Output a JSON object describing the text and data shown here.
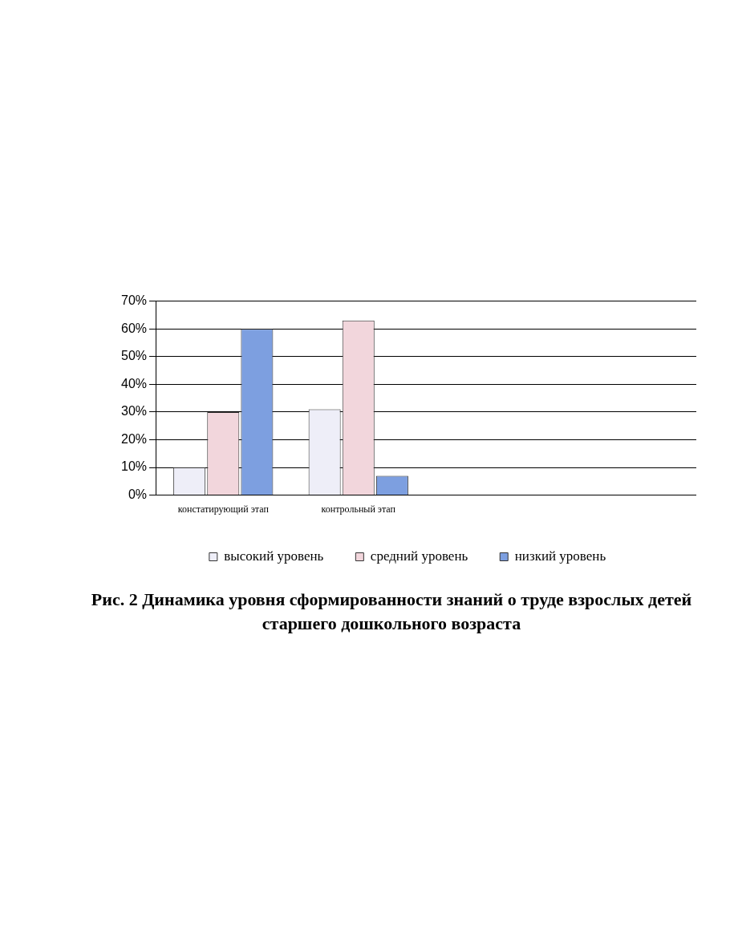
{
  "chart_data": {
    "type": "bar",
    "title": "Рис. 2 Динамика уровня сформированности знаний о труде взрослых детей старшего дошкольного возраста",
    "categories": [
      "констатирующий этап",
      "контрольный этап",
      null,
      null
    ],
    "series": [
      {
        "name": "высокий уровень",
        "color": "#eeeef8",
        "values": [
          10,
          31,
          0,
          0
        ]
      },
      {
        "name": "средний уровень",
        "color": "#f2d6dc",
        "values": [
          30,
          63,
          0,
          0
        ]
      },
      {
        "name": "низкий уровень",
        "color": "#7d9fe0",
        "values": [
          60,
          7,
          0,
          0
        ]
      }
    ],
    "ylim": [
      0,
      70
    ],
    "yticks": [
      {
        "value": 0,
        "label": "0%"
      },
      {
        "value": 10,
        "label": "10%"
      },
      {
        "value": 20,
        "label": "20%"
      },
      {
        "value": 30,
        "label": "30%"
      },
      {
        "value": 40,
        "label": "40%"
      },
      {
        "value": 50,
        "label": "50%"
      },
      {
        "value": 60,
        "label": "60%"
      },
      {
        "value": 70,
        "label": "70%"
      }
    ],
    "grid": "y",
    "legend": "bottom"
  }
}
